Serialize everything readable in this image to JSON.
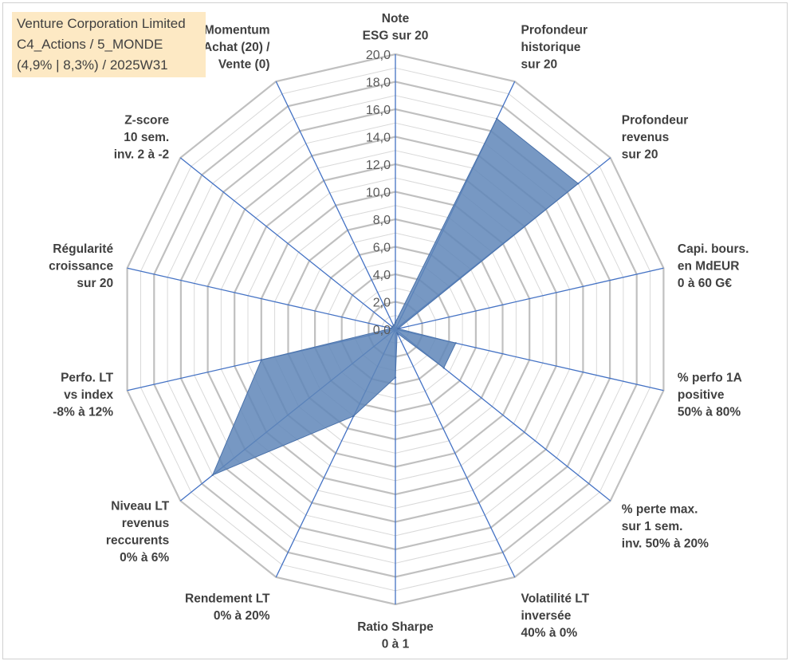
{
  "title_box": {
    "line1": "Venture Corporation Limited",
    "line2": "C4_Actions / 5_MONDE",
    "line3": "(4,9% | 8,3%) / 2025W31"
  },
  "chart_data": {
    "type": "radar",
    "rmin": 0,
    "rmax": 20,
    "tick_step": 2,
    "tick_labels": [
      "0,0",
      "2,0",
      "4,0",
      "6,0",
      "8,0",
      "10,0",
      "12,0",
      "14,0",
      "16,0",
      "18,0",
      "20,0"
    ],
    "grid": true,
    "axes": [
      {
        "lines": [
          "Note",
          "ESG sur 20"
        ],
        "value": 0.5
      },
      {
        "lines": [
          "Profondeur",
          "historique",
          "sur 20"
        ],
        "value": 17
      },
      {
        "lines": [
          "Profondeur",
          "revenus",
          "sur 20"
        ],
        "value": 17
      },
      {
        "lines": [
          "Capi. bours.",
          "en MdEUR",
          "0 à 60 G€"
        ],
        "value": 0.2
      },
      {
        "lines": [
          "% perfo 1A",
          "positive",
          "50% à 80%"
        ],
        "value": 4.5
      },
      {
        "lines": [
          "% perte max.",
          "sur 1 sem.",
          "inv. 50% à 20%"
        ],
        "value": 4.5
      },
      {
        "lines": [
          "Volatilité LT",
          "inversée",
          "40% à 0%"
        ],
        "value": 0.3
      },
      {
        "lines": [
          "Ratio Sharpe",
          "0 à 1"
        ],
        "value": 3.5
      },
      {
        "lines": [
          "Rendement LT",
          "0% à 20%"
        ],
        "value": 7
      },
      {
        "lines": [
          "Niveau LT",
          "revenus",
          "reccurents",
          "0% à 6%"
        ],
        "value": 17
      },
      {
        "lines": [
          "Perfo. LT",
          "vs index",
          "-8% à 12%"
        ],
        "value": 10
      },
      {
        "lines": [
          "Régularité",
          "croissance",
          "sur 20"
        ],
        "value": 0.3
      },
      {
        "lines": [
          "Z-score",
          "10 sem.",
          "inv. 2 à -2"
        ],
        "value": 0.3
      },
      {
        "lines": [
          "Momentum",
          "Achat (20) /",
          "Vente (0)"
        ],
        "value": 0.3
      }
    ],
    "colors": {
      "fill": "#5f86b8",
      "stroke": "#4a72ab",
      "spoke": "#4472c4",
      "grid_major": "#c0c0c0",
      "grid_minor": "#d9d9d9"
    }
  }
}
